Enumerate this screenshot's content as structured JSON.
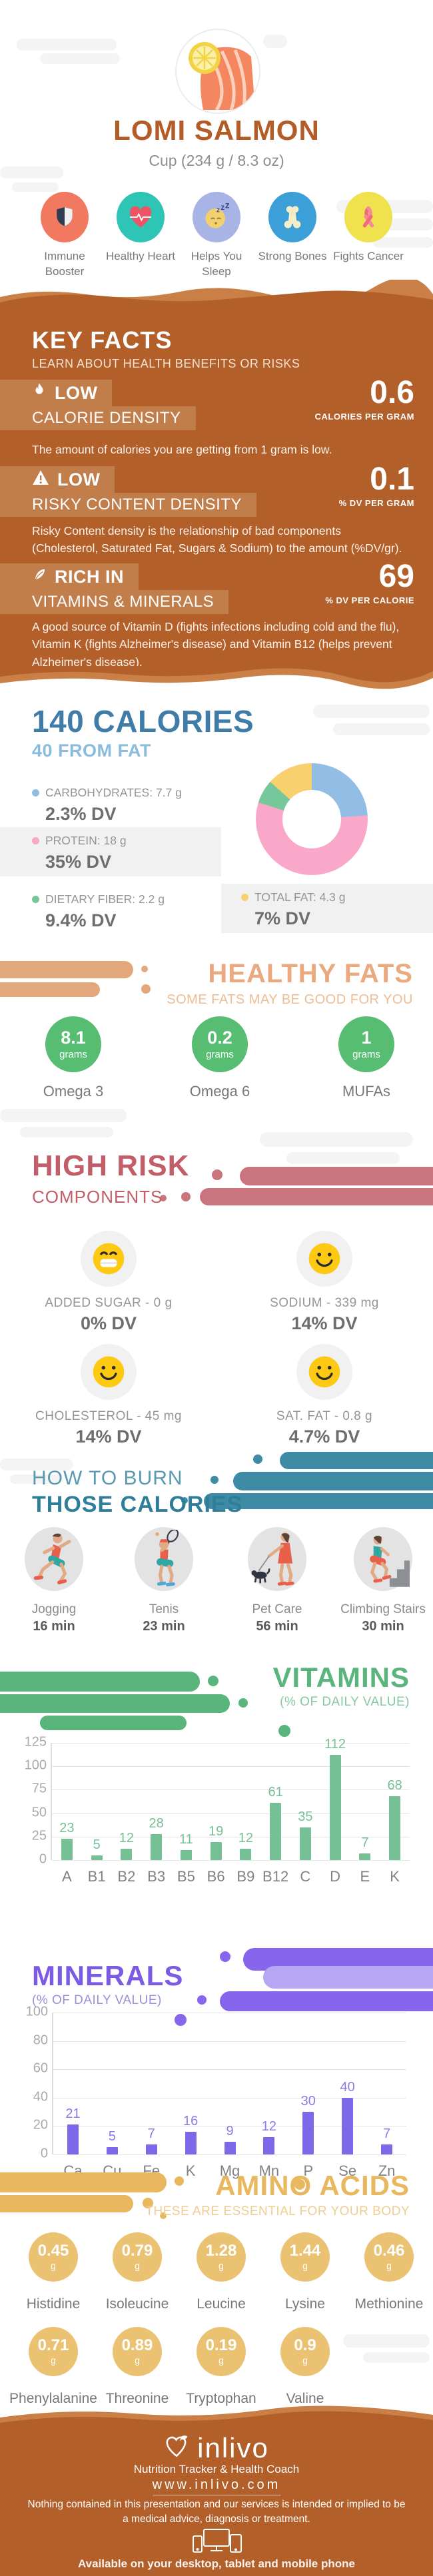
{
  "colors": {
    "brown": "#b25f2a",
    "brown-light": "#ca7f46",
    "badge": "#c17d4a",
    "rust": "#b35c28",
    "blue": "#3f7ca8",
    "blue-light": "#8bbcdc",
    "gray-text": "#939598",
    "gray-dark": "#6d6e71",
    "gray-label": "#77787b",
    "peach": "#eaa97e",
    "peach-light": "#edbd94",
    "green": "#56bd73",
    "rose": "#c25e68",
    "rose-blob": "#ca747d",
    "teal": "#2e7e99",
    "teal-light": "#5a9ab0",
    "teal-blob": "#3f8aa4",
    "vit-green": "#5ab57d",
    "vit-sub": "#86c8a4",
    "purple": "#7b5be4",
    "purple-blob": "#8765ec",
    "purple-blob-light": "#b7a6f3",
    "amber": "#e8b75e",
    "amber-light": "#eecd92",
    "amber-circle": "#eac272",
    "yellow-face": "#fdc913",
    "cloud": "#f4f4f5",
    "grid": "#e5e5e6",
    "axis-label": "#a8aaad",
    "cat-label": "#808285"
  },
  "header": {
    "title": "LOMI SALMON",
    "subtitle": "Cup (234 g / 8.3 oz)",
    "benefits": [
      {
        "label": "Immune Booster",
        "icon": "shield-icon",
        "color": "#f0795f"
      },
      {
        "label": "Healthy Heart",
        "icon": "heart-pulse-icon",
        "color": "#2ec4b6"
      },
      {
        "label": "Helps You Sleep",
        "icon": "sleeping-face-icon",
        "color": "#a9b4e6"
      },
      {
        "label": "Strong Bones",
        "icon": "bone-icon",
        "color": "#3d9fd8"
      },
      {
        "label": "Fights Cancer",
        "icon": "awareness-ribbon-icon",
        "color": "#f0e14e"
      }
    ]
  },
  "key_facts": {
    "title": "KEY FACTS",
    "subtitle": "LEARN ABOUT HEALTH BENEFITS OR RISKS",
    "facts": [
      {
        "badge": "LOW",
        "name": "CALORIE DENSITY",
        "icon": "flame-icon",
        "value": "0.6",
        "unit": "CALORIES PER GRAM",
        "description": "The amount of calories you are getting from 1 gram is low."
      },
      {
        "badge": "LOW",
        "name": "RISKY CONTENT DENSITY",
        "icon": "warning-icon",
        "value": "0.1",
        "unit": "% DV PER GRAM",
        "description": "Risky Content density is the relationship of bad components (Cholesterol, Saturated Fat, Sugars & Sodium) to the amount (%DV/gr)."
      },
      {
        "badge": "RICH IN",
        "name": "VITAMINS & MINERALS",
        "icon": "leaf-icon",
        "value": "69",
        "unit": "% DV PER CALORIE",
        "description": "A good source of Vitamin D (fights infections including cold and the flu), Vitamin K (fights Alzheimer's disease) and Vitamin B12 (helps prevent Alzheimer's disease)."
      }
    ]
  },
  "calories": {
    "title": "140 CALORIES",
    "subtitle": "40 FROM FAT",
    "macros": [
      {
        "label": "CARBOHYDRATES: 7.7 g",
        "dv": "2.3% DV"
      },
      {
        "label": "PROTEIN: 18 g",
        "dv": "35% DV"
      },
      {
        "label": "DIETARY FIBER: 2.2 g",
        "dv": "9.4% DV"
      },
      {
        "label": "TOTAL FAT: 4.3 g",
        "dv": "7% DV"
      }
    ]
  },
  "healthy_fats": {
    "title": "HEALTHY FATS",
    "subtitle": "SOME FATS MAY BE GOOD FOR YOU",
    "items": [
      {
        "value": "8.1",
        "unit": "grams",
        "label": "Omega 3"
      },
      {
        "value": "0.2",
        "unit": "grams",
        "label": "Omega 6"
      },
      {
        "value": "1",
        "unit": "grams",
        "label": "MUFAs"
      }
    ]
  },
  "high_risk": {
    "title": "HIGH RISK",
    "subtitle": "COMPONENTS",
    "items": [
      {
        "label": "ADDED SUGAR - 0 g",
        "dv": "0% DV",
        "mood": "grin"
      },
      {
        "label": "SODIUM - 339 mg",
        "dv": "14% DV",
        "mood": "smile"
      },
      {
        "label": "CHOLESTEROL - 45 mg",
        "dv": "14% DV",
        "mood": "smile"
      },
      {
        "label": "SAT. FAT - 0.8 g",
        "dv": "4.7% DV",
        "mood": "smile"
      }
    ]
  },
  "burn": {
    "title_line1": "HOW TO BURN",
    "title_line2": "THOSE CALORIES",
    "activities": [
      {
        "label": "Jogging",
        "duration": "16 min",
        "icon": "jogging-figure-icon"
      },
      {
        "label": "Tenis",
        "duration": "23 min",
        "icon": "tennis-figure-icon"
      },
      {
        "label": "Pet Care",
        "duration": "56 min",
        "icon": "dog-walking-figure-icon"
      },
      {
        "label": "Climbing Stairs",
        "duration": "30 min",
        "icon": "climbing-stairs-figure-icon"
      }
    ]
  },
  "vitamins": {
    "title": "VITAMINS",
    "subtitle": "(% OF DAILY VALUE)"
  },
  "minerals": {
    "title": "MINERALS",
    "subtitle": "(% OF DAILY VALUE)"
  },
  "amino_acids": {
    "title": "AMINO ACIDS",
    "subtitle": "THESE ARE ESSENTIAL FOR YOUR BODY",
    "items": [
      {
        "value": "0.45",
        "unit": "g",
        "label": "Histidine"
      },
      {
        "value": "0.79",
        "unit": "g",
        "label": "Isoleucine"
      },
      {
        "value": "1.28",
        "unit": "g",
        "label": "Leucine"
      },
      {
        "value": "1.44",
        "unit": "g",
        "label": "Lysine"
      },
      {
        "value": "0.46",
        "unit": "g",
        "label": "Methionine"
      },
      {
        "value": "0.71",
        "unit": "g",
        "label": "Phenylalanine"
      },
      {
        "value": "0.89",
        "unit": "g",
        "label": "Threonine"
      },
      {
        "value": "0.19",
        "unit": "g",
        "label": "Tryptophan"
      },
      {
        "value": "0.9",
        "unit": "g",
        "label": "Valine"
      }
    ]
  },
  "footer": {
    "brand": "inlivo",
    "tagline": "Nutrition Tracker & Health Coach",
    "url": "www.inlivo.com",
    "disclaimer": "Nothing contained in this presentation and our services is intended or implied to be a medical advice, diagnosis or treatment.",
    "availability": "Available on your desktop, tablet and mobile phone"
  },
  "chart_data": [
    {
      "type": "pie",
      "donut": true,
      "title": "140 CALORIES",
      "subtitle": "40 FROM FAT",
      "labels": [
        "Carbohydrates",
        "Protein",
        "Dietary Fiber",
        "Total Fat"
      ],
      "values_grams": [
        7.7,
        18,
        2.2,
        4.3
      ],
      "dv_percent": [
        "2.3% DV",
        "35% DV",
        "9.4% DV",
        "7% DV"
      ],
      "colors": [
        "#92bde4",
        "#f9a8c9",
        "#76c79b",
        "#f8d06e"
      ]
    },
    {
      "type": "bar",
      "title": "VITAMINS",
      "subtitle": "(% OF DAILY VALUE)",
      "categories": [
        "A",
        "B1",
        "B2",
        "B3",
        "B5",
        "B6",
        "B9",
        "B12",
        "C",
        "D",
        "E",
        "K"
      ],
      "values": [
        23,
        5,
        12,
        28,
        11,
        19,
        12,
        61,
        35,
        112,
        7,
        68
      ],
      "ylim": [
        0,
        125
      ],
      "ticks": [
        0,
        25,
        50,
        75,
        100,
        125
      ],
      "bar_color": "#76c096",
      "value_label_color": "#76c096",
      "grid": true,
      "legend": "none"
    },
    {
      "type": "bar",
      "title": "MINERALS",
      "subtitle": "(% OF DAILY VALUE)",
      "categories": [
        "Ca",
        "Cu",
        "Fe",
        "K",
        "Mg",
        "Mn",
        "P",
        "Se",
        "Zn"
      ],
      "values": [
        21,
        5,
        7,
        16,
        9,
        12,
        30,
        40,
        7
      ],
      "ylim": [
        0,
        100
      ],
      "ticks": [
        0,
        20,
        40,
        60,
        80,
        100
      ],
      "bar_color": "#7c68e8",
      "value_label_color": "#8b7ce8",
      "grid": true,
      "legend": "none"
    }
  ]
}
